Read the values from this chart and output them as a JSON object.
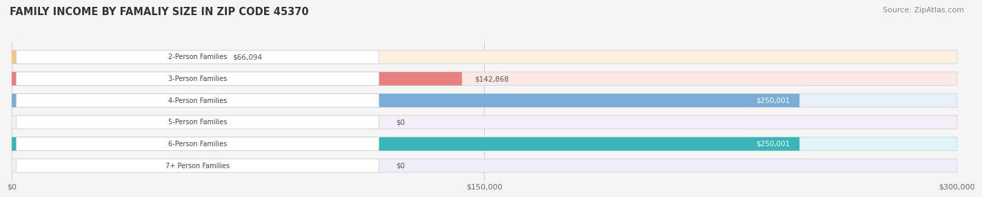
{
  "title": "FAMILY INCOME BY FAMALIY SIZE IN ZIP CODE 45370",
  "source": "Source: ZipAtlas.com",
  "categories": [
    "2-Person Families",
    "3-Person Families",
    "4-Person Families",
    "5-Person Families",
    "6-Person Families",
    "7+ Person Families"
  ],
  "values": [
    66094,
    142868,
    250001,
    0,
    250001,
    0
  ],
  "labels": [
    "$66,094",
    "$142,868",
    "$250,001",
    "$0",
    "$250,001",
    "$0"
  ],
  "bar_colors": [
    "#f5c589",
    "#e88080",
    "#7aaed6",
    "#c9a8d4",
    "#3ab5b8",
    "#b0b8e8"
  ],
  "bar_bg_colors": [
    "#fdf0e0",
    "#fde8e8",
    "#e8f0fb",
    "#f5eef8",
    "#e0f5f5",
    "#eeeef8"
  ],
  "label_colors": [
    "#555555",
    "#555555",
    "#ffffff",
    "#555555",
    "#ffffff",
    "#555555"
  ],
  "xlim": [
    0,
    300000
  ],
  "xticks": [
    0,
    150000,
    300000
  ],
  "xtick_labels": [
    "$0",
    "$150,000",
    "$300,000"
  ],
  "title_fontsize": 10.5,
  "source_fontsize": 8,
  "bar_height": 0.62,
  "background_color": "#f5f5f5"
}
